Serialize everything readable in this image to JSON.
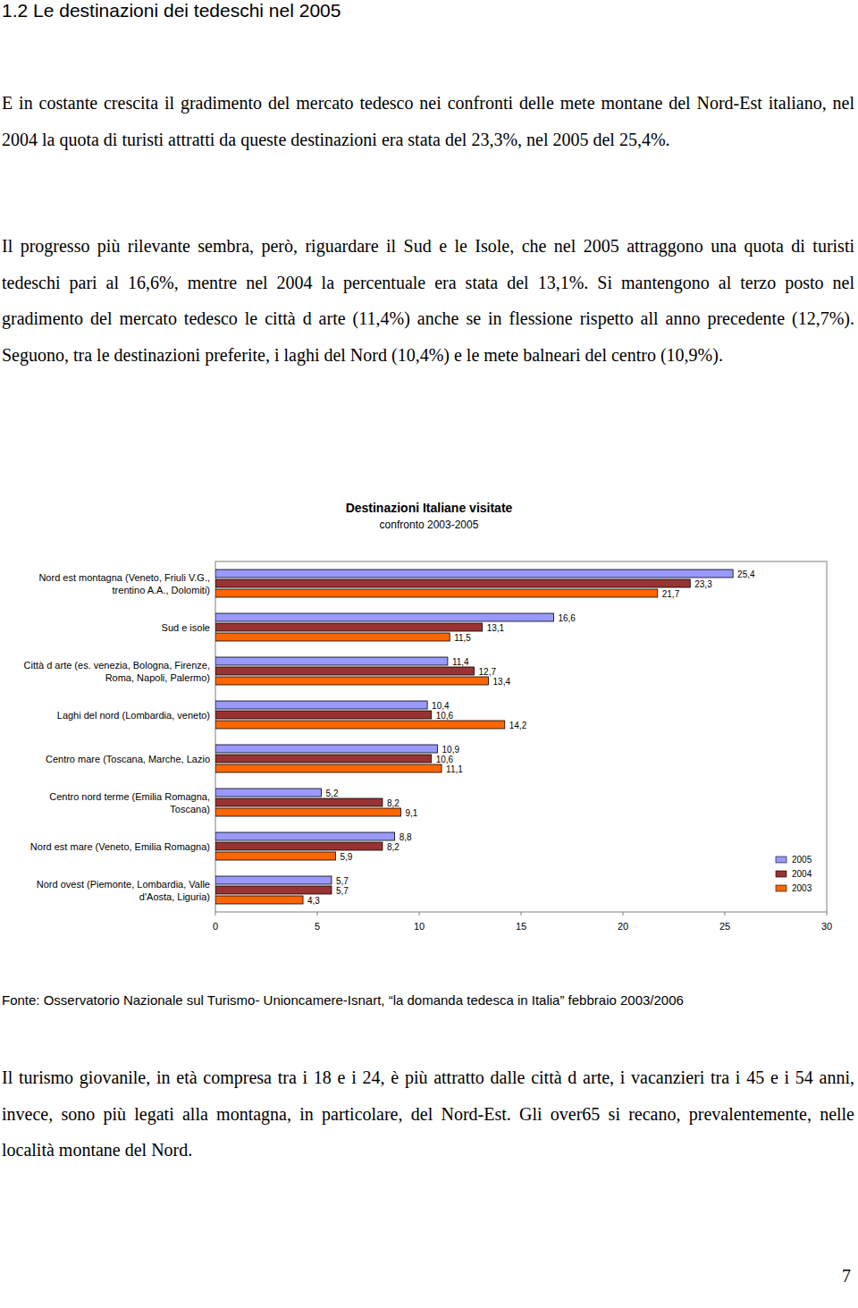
{
  "header": {
    "title": "1.2 Le destinazioni dei tedeschi nel 2005"
  },
  "paragraphs": [
    "E in costante crescita il gradimento del mercato tedesco nei confronti delle mete montane del Nord-Est italiano, nel 2004 la quota di turisti attratti da queste destinazioni era stata del 23,3%, nel 2005 del 25,4%.",
    "Il progresso più rilevante sembra, però, riguardare il Sud e le Isole, che nel 2005 attraggono una quota di turisti tedeschi pari al 16,6%, mentre nel 2004 la percentuale era stata del 13,1%. Si mantengono al terzo posto nel gradimento del mercato tedesco le città d arte (11,4%) anche se in flessione rispetto all anno precedente (12,7%). Seguono, tra le destinazioni preferite, i laghi del Nord (10,4%) e le mete balneari del centro (10,9%)."
  ],
  "chart_data": {
    "type": "bar",
    "orientation": "horizontal",
    "title": "Destinazioni Italiane visitate",
    "subtitle": "confronto 2003-2005",
    "categories": [
      "Nord est montagna (Veneto, Friuli V.G., trentino A.A., Dolomiti)",
      "Sud e isole",
      "Città d arte (es. venezia, Bologna, Firenze, Roma, Napoli, Palermo)",
      "Laghi del nord (Lombardia, veneto)",
      "Centro mare (Toscana, Marche, Lazio",
      "Centro nord terme (Emilia Romagna, Toscana)",
      "Nord est mare (Veneto, Emilia Romagna)",
      "Nord ovest (Piemonte, Lombardia, Valle d'Aosta, Liguria)"
    ],
    "series": [
      {
        "name": "2005",
        "color": "#9999ff",
        "values": [
          25.4,
          16.6,
          11.4,
          10.4,
          10.9,
          5.2,
          8.8,
          5.7
        ]
      },
      {
        "name": "2004",
        "color": "#993333",
        "values": [
          23.3,
          13.1,
          12.7,
          10.6,
          10.6,
          8.2,
          8.2,
          5.7
        ]
      },
      {
        "name": "2003",
        "color": "#ff6600",
        "values": [
          21.7,
          11.5,
          13.4,
          14.2,
          11.1,
          9.1,
          5.9,
          4.3
        ]
      }
    ],
    "value_labels": [
      [
        "25,4",
        "16,6",
        "11,4",
        "10,4",
        "10,9",
        "5,2",
        "8,8",
        "5,7"
      ],
      [
        "23,3",
        "13,1",
        "12,7",
        "10,6",
        "10,6",
        "8,2",
        "8,2",
        "5,7"
      ],
      [
        "21,7",
        "11,5",
        "13,4",
        "14,2",
        "11,1",
        "9,1",
        "5,9",
        "4,3"
      ]
    ],
    "xlim": [
      0,
      30
    ],
    "xticks": [
      0,
      5,
      10,
      15,
      20,
      25,
      30
    ],
    "data_labels": true,
    "legend": "right",
    "grid": false
  },
  "source": "Fonte: Osservatorio Nazionale sul Turismo- Unioncamere-Isnart, “la domanda tedesca in Italia” febbraio 2003/2006",
  "closing": "Il turismo giovanile, in età compresa tra i 18 e i 24, è più attratto dalle città d arte, i vacanzieri tra i 45 e i 54 anni, invece, sono più legati alla montagna, in particolare, del Nord-Est. Gli over65 si recano, prevalentemente, nelle località montane del Nord.",
  "page_number": "7"
}
